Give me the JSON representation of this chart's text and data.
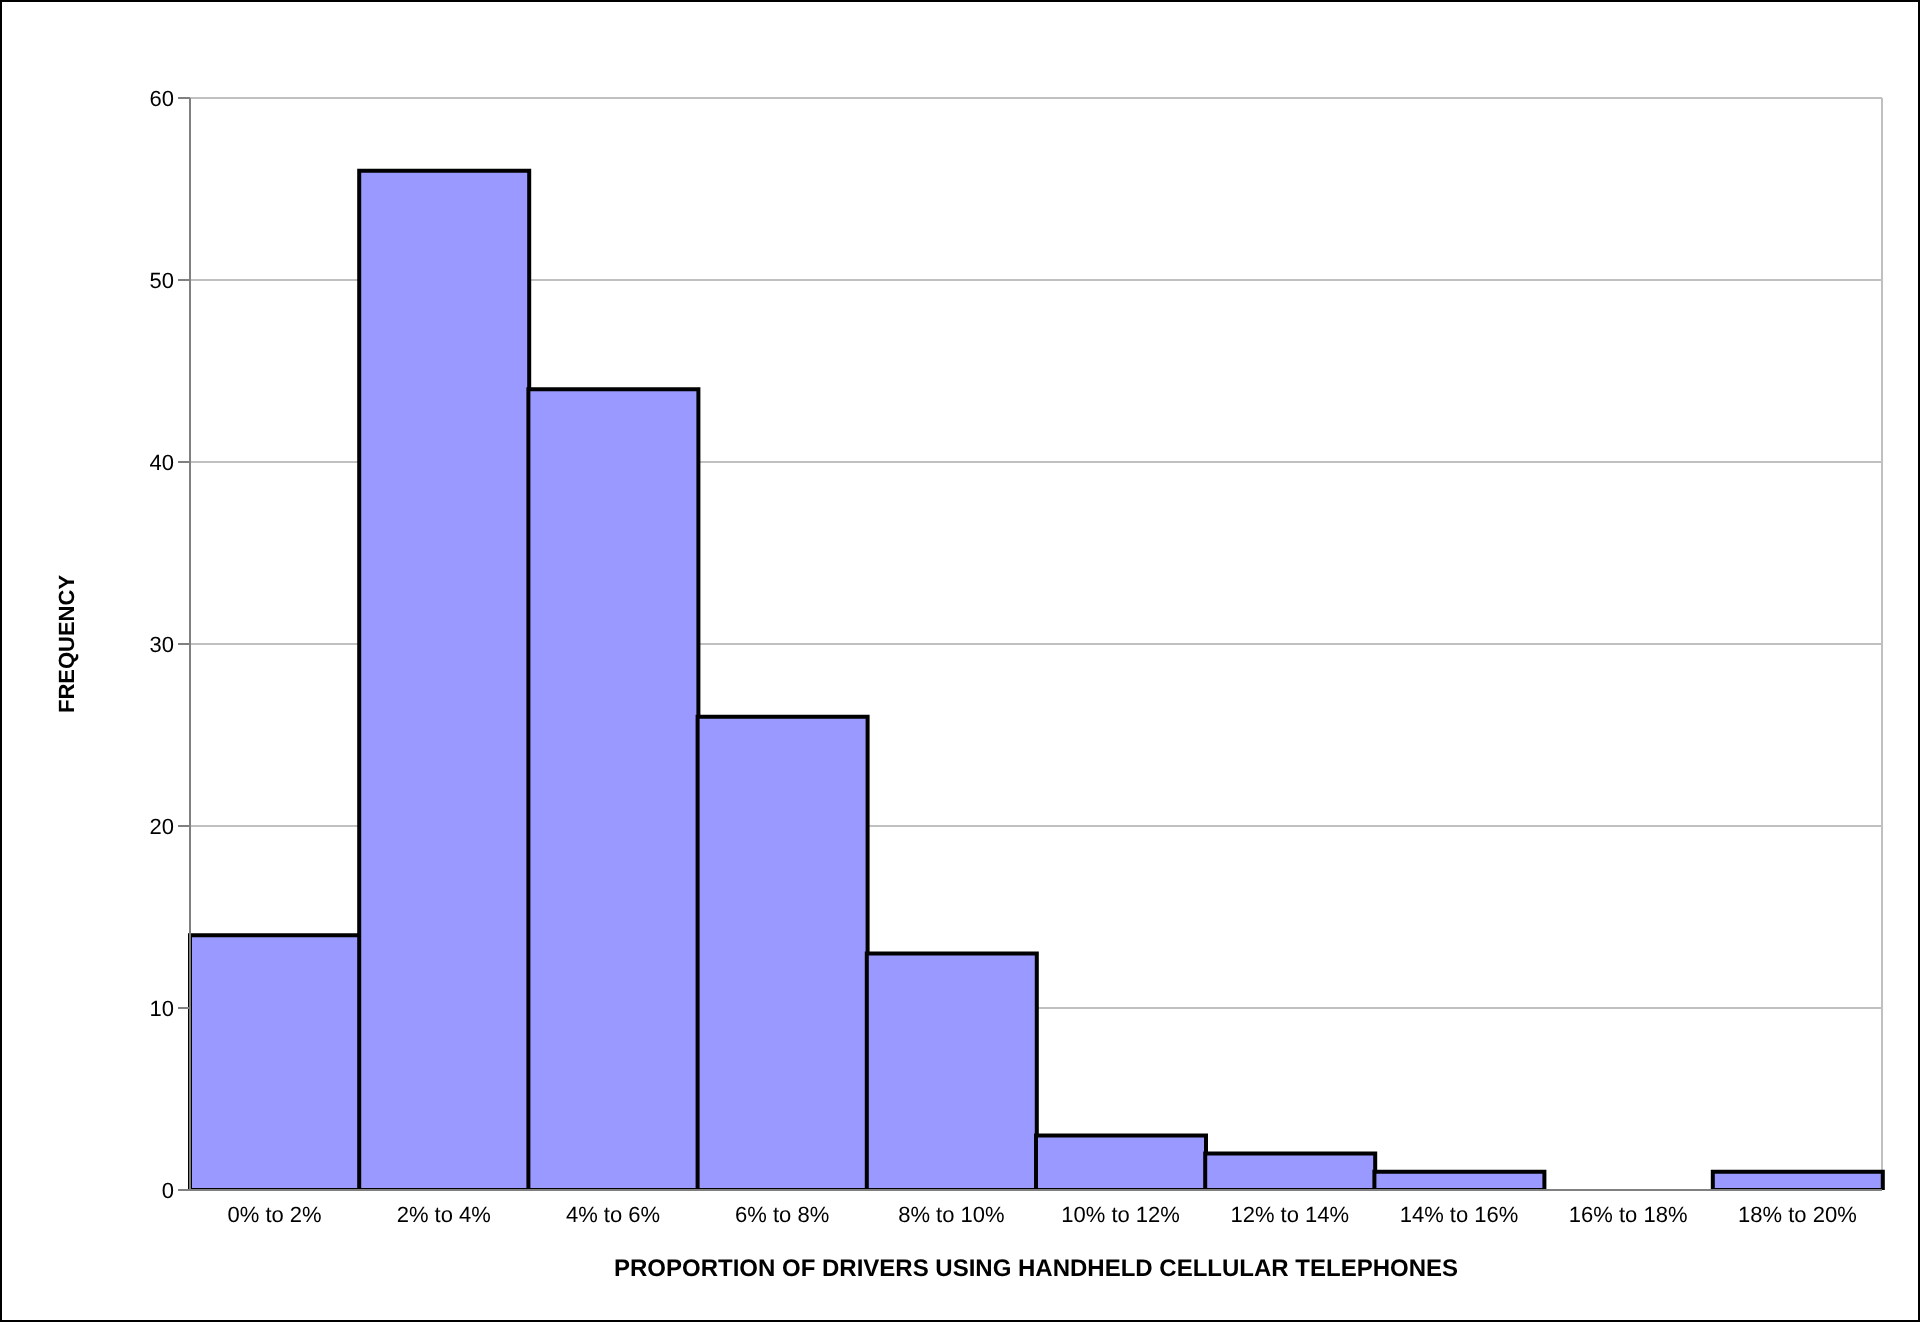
{
  "chart_data": {
    "type": "bar",
    "xlabel": "PROPORTION OF DRIVERS USING HANDHELD CELLULAR TELEPHONES",
    "ylabel": "FREQUENCY",
    "categories": [
      "0% to 2%",
      "2% to 4%",
      "4% to 6%",
      "6% to 8%",
      "8% to 10%",
      "10% to 12%",
      "12% to 14%",
      "14% to 16%",
      "16% to 18%",
      "18% to 20%"
    ],
    "values": [
      14,
      56,
      44,
      26,
      13,
      3,
      2,
      1,
      0,
      1
    ],
    "color": "#9999ff",
    "ylim": [
      0,
      60
    ],
    "yticks": [
      0,
      10,
      20,
      30,
      40,
      50,
      60
    ],
    "grid": "y"
  }
}
